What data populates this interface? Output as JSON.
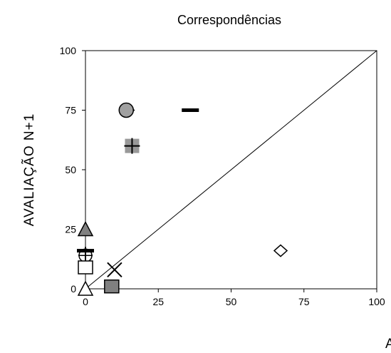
{
  "chart_data": {
    "type": "scatter",
    "title": "Correspondências",
    "xlabel": "A",
    "ylabel": "AVALIAÇÃO N+1",
    "xlim": [
      0,
      100
    ],
    "ylim": [
      0,
      100
    ],
    "xticks": [
      "0",
      "25",
      "50",
      "75",
      "100"
    ],
    "yticks": [
      "0",
      "25",
      "50",
      "75",
      "100"
    ],
    "grid": false,
    "diagonal_reference": true,
    "points": [
      {
        "x": 0,
        "y": 25,
        "marker": "triangle",
        "fill": "#808080"
      },
      {
        "x": 0,
        "y": 16,
        "marker": "dash",
        "fill": "#000000"
      },
      {
        "x": 0,
        "y": 14,
        "marker": "circle-cross",
        "fill": "none"
      },
      {
        "x": 0,
        "y": 9,
        "marker": "square",
        "fill": "#ffffff"
      },
      {
        "x": 0,
        "y": 0,
        "marker": "triangle",
        "fill": "#ffffff"
      },
      {
        "x": 9,
        "y": 1,
        "marker": "square",
        "fill": "#808080"
      },
      {
        "x": 10,
        "y": 8,
        "marker": "x",
        "fill": "none"
      },
      {
        "x": 14.5,
        "y": 75,
        "marker": "diamond",
        "fill": "#ffffff"
      },
      {
        "x": 14,
        "y": 75,
        "marker": "circle",
        "fill": "#a0a0a0"
      },
      {
        "x": 16,
        "y": 60,
        "marker": "plus-square",
        "fill": "#999999"
      },
      {
        "x": 36,
        "y": 75,
        "marker": "dash",
        "fill": "#000000"
      },
      {
        "x": 67,
        "y": 16,
        "marker": "diamond",
        "fill": "#ffffff"
      }
    ]
  }
}
